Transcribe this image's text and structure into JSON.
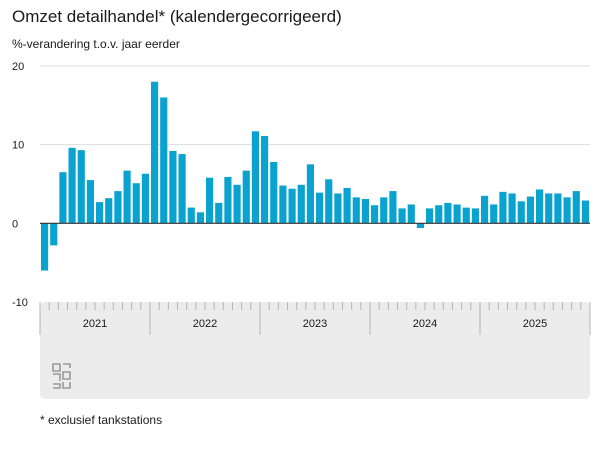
{
  "header": {
    "title": "Omzet detailhandel* (kalendergecorrigeerd)",
    "subtitle": "%-verandering t.o.v. jaar eerder"
  },
  "footer": {
    "note": "* exclusief tankstations"
  },
  "logo": {
    "icon": "cbs-logo-icon"
  },
  "colors": {
    "bar": "#0aa3cf",
    "axis_band": "#ececec",
    "grid": "#dddddd"
  },
  "chart_data": {
    "type": "bar",
    "title": "",
    "xlabel": "",
    "ylabel": "",
    "ylim": [
      -10,
      20
    ],
    "yticks": [
      20,
      10,
      0,
      -10
    ],
    "grid": true,
    "legend": "none",
    "x_start": "2021-01",
    "year_labels": [
      "2021",
      "2022",
      "2023",
      "2024",
      "2025"
    ],
    "values": [
      -6.0,
      -2.8,
      6.5,
      9.6,
      9.3,
      5.5,
      2.7,
      3.2,
      4.1,
      6.7,
      5.1,
      6.3,
      18.0,
      16.0,
      9.2,
      8.8,
      2.0,
      1.4,
      5.8,
      2.6,
      5.9,
      4.9,
      6.7,
      11.7,
      11.1,
      7.8,
      4.8,
      4.4,
      4.9,
      7.5,
      3.9,
      5.6,
      3.8,
      4.5,
      3.3,
      3.1,
      2.3,
      3.3,
      4.1,
      1.9,
      2.4,
      -0.6,
      1.9,
      2.3,
      2.6,
      2.4,
      2.0,
      1.9,
      3.5,
      2.4,
      4.0,
      3.8,
      2.8,
      3.4,
      4.3,
      3.8,
      3.8,
      3.3,
      4.1,
      2.9
    ]
  }
}
